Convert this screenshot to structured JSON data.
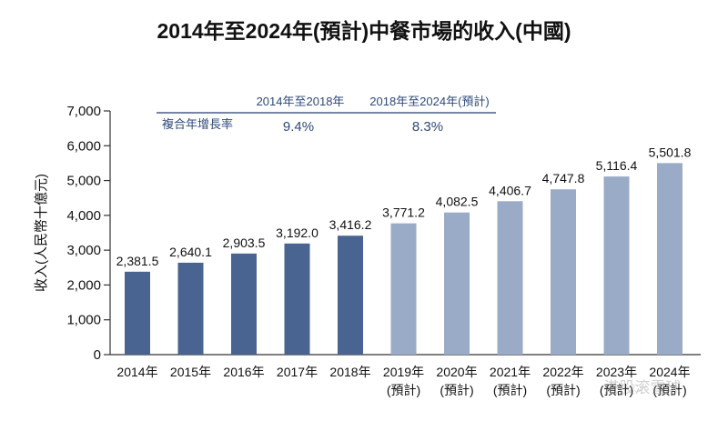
{
  "chart_data": {
    "type": "bar",
    "title": "2014年至2024年(預計)中餐市場的收入(中國)",
    "ylabel": "收入(人民幣十億元)",
    "xlabel": "",
    "ylim": [
      0,
      7000
    ],
    "yticks": [
      "0",
      "1,000",
      "2,000",
      "3,000",
      "4,000",
      "5,000",
      "6,000",
      "7,000"
    ],
    "grid": false,
    "categories": [
      "2014年",
      "2015年",
      "2016年",
      "2017年",
      "2018年",
      "2019年",
      "2020年",
      "2021年",
      "2022年",
      "2023年",
      "2024年"
    ],
    "forecast_flags": [
      false,
      false,
      false,
      false,
      false,
      true,
      true,
      true,
      true,
      true,
      true
    ],
    "forecast_label": "(預計)",
    "values": [
      2381.5,
      2640.1,
      2903.5,
      3192.0,
      3416.2,
      3771.2,
      4082.5,
      4406.7,
      4747.8,
      5116.4,
      5501.8
    ],
    "value_labels": [
      "2,381.5",
      "2,640.1",
      "2,903.5",
      "3,192.0",
      "3,416.2",
      "3,771.2",
      "4,082.5",
      "4,406.7",
      "4,747.8",
      "5,116.4",
      "5,501.8"
    ],
    "colors": {
      "actual": "#4a6491",
      "forecast": "#9aabc7",
      "table_text": "#2f4a7a"
    },
    "cagr_table": {
      "row_label": "複合年增長率",
      "columns": [
        {
          "header": "2014年至2018年",
          "value": "9.4%"
        },
        {
          "header": "2018年至2024年(預計)",
          "value": "8.3%"
        }
      ]
    }
  },
  "watermark": "港股滚雪球"
}
